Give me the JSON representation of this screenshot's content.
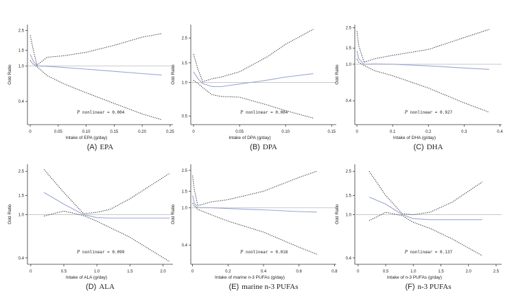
{
  "figure": {
    "panels": [
      {
        "letter": "(A)",
        "caption": "EPA",
        "xlabel": "Intake of EPA (g/day)",
        "ylabel": "Odd Ratio",
        "xticks": [
          "0",
          "0.05",
          "0.10",
          "0.15",
          "0.20",
          "0.25"
        ],
        "xtick_values": [
          0,
          0.05,
          0.1,
          0.15,
          0.2,
          0.25
        ],
        "xlim": [
          -0.005,
          0.255
        ],
        "yticks": [
          "0.4",
          "1.0",
          "1.5",
          "2.5"
        ],
        "ytick_values": [
          0.4,
          1.0,
          1.5,
          2.5
        ],
        "ylim": [
          0.22,
          2.9
        ],
        "note_p": "P",
        "note_rest": " nonlinear = 0.004"
      },
      {
        "letter": "(B)",
        "caption": "DPA",
        "xlabel": "Intake of DPA (g/day)",
        "ylabel": "Odd Ratio",
        "xticks": [
          "0",
          "0.05",
          "0.10",
          "0.15"
        ],
        "xtick_values": [
          0,
          0.05,
          0.1,
          0.15
        ],
        "xlim": [
          -0.003,
          0.155
        ],
        "yticks": [
          "0.5",
          "1.0",
          "1.5",
          "2.5"
        ],
        "ytick_values": [
          0.5,
          1.0,
          1.5,
          2.5
        ],
        "ylim": [
          0.42,
          3.3
        ],
        "note_p": "P",
        "note_rest": " nonlinear = 0.004"
      },
      {
        "letter": "(C)",
        "caption": "DHA",
        "xlabel": "Intake of DHA (g/day)",
        "ylabel": "Odd Ratio",
        "xticks": [
          "0",
          "0.1",
          "0.2",
          "0.3",
          "0.4"
        ],
        "xtick_values": [
          0,
          0.1,
          0.2,
          0.3,
          0.4
        ],
        "xlim": [
          -0.006,
          0.405
        ],
        "yticks": [
          "0.4",
          "1.0",
          "1.5",
          "2.5"
        ],
        "ytick_values": [
          0.4,
          1.0,
          1.5,
          2.5
        ],
        "ylim": [
          0.22,
          2.7
        ],
        "note_p": "P",
        "note_rest": " nonlinear = 0.927"
      },
      {
        "letter": "(D)",
        "caption": "ALA",
        "xlabel": "Intake of ALA (g/day)",
        "ylabel": "Odd Ratio",
        "xticks": [
          "0",
          "0.5",
          "1.0",
          "1.5",
          "2.0"
        ],
        "xtick_values": [
          0,
          0.5,
          1.0,
          1.5,
          2.0
        ],
        "xlim": [
          -0.05,
          2.15
        ],
        "yticks": [
          "0.4",
          "1.0",
          "1.5",
          "2.5"
        ],
        "ytick_values": [
          0.4,
          1.0,
          1.5,
          2.5
        ],
        "ylim": [
          0.35,
          2.9
        ],
        "note_p": "P",
        "note_rest": " nonlinear = 0.099"
      },
      {
        "letter": "(E)",
        "caption": "marine n-3 PUFAs",
        "xlabel": "Intake of marine n-3 PUFAs (g/day)",
        "ylabel": "Odd Ratio",
        "xticks": [
          "0",
          "0.2",
          "0.4",
          "0.6",
          "0.8"
        ],
        "xtick_values": [
          0,
          0.2,
          0.4,
          0.6,
          0.8
        ],
        "xlim": [
          -0.01,
          0.81
        ],
        "yticks": [
          "0.4",
          "1.0",
          "1.5",
          "2.5"
        ],
        "ytick_values": [
          0.4,
          1.0,
          1.5,
          2.5
        ],
        "ylim": [
          0.25,
          2.9
        ],
        "note_p": "P",
        "note_rest": " nonlinear = 0.018"
      },
      {
        "letter": "(F)",
        "caption": "n-3 PUFAs",
        "xlabel": "Intake of n-3 PUFAs (g/day)",
        "ylabel": "Odd Ratio",
        "xticks": [
          "0",
          "0.5",
          "1.0",
          "1.5",
          "2.0",
          "2.5"
        ],
        "xtick_values": [
          0,
          0.5,
          1.0,
          1.5,
          2.0,
          2.5
        ],
        "xlim": [
          -0.06,
          2.6
        ],
        "yticks": [
          "0.4",
          "1.0",
          "1.5",
          "2.5"
        ],
        "ytick_values": [
          0.4,
          1.0,
          1.5,
          2.5
        ],
        "ylim": [
          0.35,
          2.9
        ],
        "note_p": "P",
        "note_rest": " nonlinear = 0.137"
      }
    ]
  },
  "chart_data": [
    {
      "type": "line",
      "title": "(A) EPA",
      "xlabel": "Intake of EPA (g/day)",
      "ylabel": "Odd Ratio",
      "ylim": [
        0.22,
        2.9
      ],
      "y_scale": "log",
      "reference_line": 1.0,
      "series": [
        {
          "x": [
            0.0,
            0.005,
            0.012,
            0.03,
            0.06,
            0.1,
            0.15,
            0.2,
            0.235
          ],
          "y": [
            1.35,
            1.15,
            1.0,
            0.99,
            0.96,
            0.92,
            0.87,
            0.82,
            0.79
          ]
        },
        {
          "x": [
            0.0,
            0.005,
            0.012,
            0.03,
            0.06,
            0.1,
            0.15,
            0.2,
            0.235
          ],
          "y": [
            2.2,
            1.55,
            1.02,
            1.25,
            1.3,
            1.42,
            1.7,
            2.1,
            2.3
          ]
        },
        {
          "x": [
            0.0,
            0.005,
            0.012,
            0.03,
            0.06,
            0.1,
            0.15,
            0.2,
            0.235
          ],
          "y": [
            1.15,
            1.05,
            0.98,
            0.78,
            0.63,
            0.5,
            0.38,
            0.29,
            0.25
          ]
        }
      ]
    },
    {
      "type": "line",
      "title": "(B) DPA",
      "xlabel": "Intake of DPA (g/day)",
      "ylabel": "Odd Ratio",
      "ylim": [
        0.42,
        3.3
      ],
      "y_scale": "log",
      "reference_line": 1.0,
      "series": [
        {
          "x": [
            0.0,
            0.005,
            0.01,
            0.02,
            0.03,
            0.05,
            0.08,
            0.1,
            0.13
          ],
          "y": [
            1.25,
            1.08,
            0.98,
            0.92,
            0.92,
            0.97,
            1.05,
            1.12,
            1.2
          ]
        },
        {
          "x": [
            0.0,
            0.005,
            0.01,
            0.02,
            0.03,
            0.05,
            0.08,
            0.1,
            0.13
          ],
          "y": [
            1.8,
            1.3,
            1.02,
            1.08,
            1.12,
            1.25,
            1.7,
            2.2,
            3.0
          ]
        },
        {
          "x": [
            0.0,
            0.005,
            0.01,
            0.02,
            0.03,
            0.05,
            0.08,
            0.1,
            0.13
          ],
          "y": [
            1.05,
            0.98,
            0.9,
            0.78,
            0.75,
            0.74,
            0.63,
            0.56,
            0.48
          ]
        }
      ]
    },
    {
      "type": "line",
      "title": "(C) DHA",
      "xlabel": "Intake of DHA (g/day)",
      "ylabel": "Odd Ratio",
      "ylim": [
        0.22,
        2.7
      ],
      "y_scale": "log",
      "reference_line": 1.0,
      "series": [
        {
          "x": [
            0.0,
            0.005,
            0.02,
            0.05,
            0.1,
            0.2,
            0.3,
            0.37
          ],
          "y": [
            1.4,
            1.15,
            1.0,
            1.01,
            1.0,
            0.96,
            0.91,
            0.88
          ]
        },
        {
          "x": [
            0.0,
            0.005,
            0.02,
            0.05,
            0.1,
            0.2,
            0.3,
            0.37
          ],
          "y": [
            2.3,
            1.6,
            1.05,
            1.15,
            1.25,
            1.45,
            1.95,
            2.4
          ]
        },
        {
          "x": [
            0.0,
            0.005,
            0.02,
            0.05,
            0.1,
            0.2,
            0.3,
            0.37
          ],
          "y": [
            1.15,
            1.05,
            0.97,
            0.85,
            0.75,
            0.55,
            0.38,
            0.3
          ]
        }
      ]
    },
    {
      "type": "line",
      "title": "(D) ALA",
      "xlabel": "Intake of ALA (g/day)",
      "ylabel": "Odd Ratio",
      "ylim": [
        0.35,
        2.9
      ],
      "y_scale": "log",
      "reference_line": 1.0,
      "series": [
        {
          "x": [
            0.2,
            0.5,
            0.8,
            1.0,
            1.2,
            1.5,
            2.1
          ],
          "y": [
            1.6,
            1.25,
            1.0,
            0.94,
            0.93,
            0.93,
            0.93
          ]
        },
        {
          "x": [
            0.2,
            0.5,
            0.8,
            1.0,
            1.2,
            1.5,
            2.1
          ],
          "y": [
            2.6,
            1.6,
            1.02,
            1.05,
            1.12,
            1.4,
            2.4
          ]
        },
        {
          "x": [
            0.2,
            0.5,
            0.8,
            1.0,
            1.2,
            1.5,
            2.1
          ],
          "y": [
            0.97,
            1.08,
            0.98,
            0.87,
            0.76,
            0.62,
            0.37
          ]
        }
      ]
    },
    {
      "type": "line",
      "title": "(E) marine n-3 PUFAs",
      "xlabel": "Intake of marine n-3 PUFAs (g/day)",
      "ylabel": "Odd Ratio",
      "ylim": [
        0.25,
        2.9
      ],
      "y_scale": "log",
      "reference_line": 1.0,
      "series": [
        {
          "x": [
            0.0,
            0.01,
            0.03,
            0.1,
            0.2,
            0.4,
            0.6,
            0.7
          ],
          "y": [
            1.35,
            1.12,
            1.0,
            1.0,
            0.98,
            0.95,
            0.91,
            0.9
          ]
        },
        {
          "x": [
            0.0,
            0.01,
            0.03,
            0.1,
            0.2,
            0.4,
            0.6,
            0.7
          ],
          "y": [
            2.2,
            1.55,
            1.05,
            1.15,
            1.22,
            1.5,
            2.1,
            2.45
          ]
        },
        {
          "x": [
            0.0,
            0.01,
            0.03,
            0.1,
            0.2,
            0.4,
            0.6,
            0.7
          ],
          "y": [
            1.12,
            1.05,
            0.96,
            0.85,
            0.72,
            0.55,
            0.38,
            0.32
          ]
        }
      ]
    },
    {
      "type": "line",
      "title": "(F) n-3 PUFAs",
      "xlabel": "Intake of n-3 PUFAs (g/day)",
      "ylabel": "Odd Ratio",
      "ylim": [
        0.35,
        2.9
      ],
      "y_scale": "log",
      "reference_line": 1.0,
      "series": [
        {
          "x": [
            0.2,
            0.5,
            0.8,
            1.0,
            1.3,
            1.7,
            2.25
          ],
          "y": [
            1.45,
            1.25,
            1.0,
            0.92,
            0.9,
            0.9,
            0.9
          ]
        },
        {
          "x": [
            0.2,
            0.5,
            0.8,
            1.0,
            1.3,
            1.7,
            2.25
          ],
          "y": [
            2.5,
            1.5,
            1.02,
            1.0,
            1.05,
            1.3,
            2.0
          ]
        },
        {
          "x": [
            0.2,
            0.5,
            0.8,
            1.0,
            1.3,
            1.7,
            2.25
          ],
          "y": [
            0.88,
            1.05,
            0.98,
            0.85,
            0.75,
            0.6,
            0.42
          ]
        }
      ]
    }
  ],
  "colors": {
    "estimate": "#9aa6d6",
    "ci": "#2b2b2b",
    "reference": "#c8c8c8",
    "axis": "#333333",
    "text": "#222222"
  }
}
